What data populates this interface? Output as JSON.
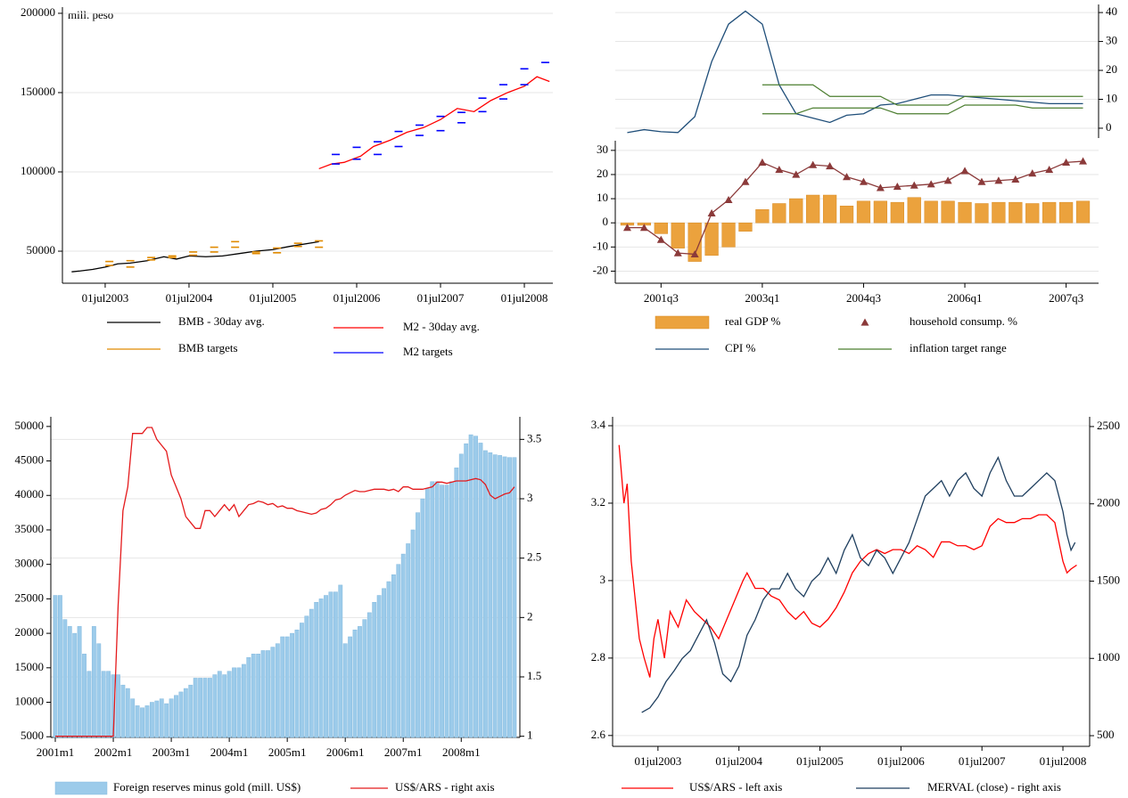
{
  "chart_data": [
    {
      "type": "line",
      "annotation": "mill. peso",
      "xlim": [
        2002.99,
        2008.84
      ],
      "xticks": [
        {
          "value": 2003.5,
          "label": "01jul2003"
        },
        {
          "value": 2004.5,
          "label": "01jul2004"
        },
        {
          "value": 2005.5,
          "label": "01jul2005"
        },
        {
          "value": 2006.5,
          "label": "01jul2006"
        },
        {
          "value": 2007.5,
          "label": "01jul2007"
        },
        {
          "value": 2008.5,
          "label": "01jul2008"
        }
      ],
      "ylim": [
        29800,
        203900
      ],
      "yticks": [
        50000,
        100000,
        150000,
        200000
      ],
      "grid": "y",
      "series": [
        {
          "name": "BMB - 30day avg.",
          "kind": "line",
          "color": "#000000",
          "x": [
            2003.1,
            2003.2,
            2003.35,
            2003.5,
            2003.65,
            2003.8,
            2004.0,
            2004.2,
            2004.35,
            2004.5,
            2004.7,
            2004.9,
            2005.1,
            2005.3,
            2005.5,
            2005.7,
            2006.05
          ],
          "values": [
            37000,
            37500,
            38500,
            40000,
            42000,
            42500,
            44000,
            46500,
            45000,
            47000,
            46500,
            47000,
            48500,
            50000,
            51000,
            53000,
            56000
          ]
        },
        {
          "name": "M2 - 30day avg.",
          "kind": "line",
          "color": "#ff0000",
          "x": [
            2006.05,
            2006.2,
            2006.35,
            2006.55,
            2006.7,
            2006.9,
            2007.1,
            2007.3,
            2007.5,
            2007.7,
            2007.9,
            2008.1,
            2008.3,
            2008.5,
            2008.65,
            2008.8
          ],
          "values": [
            102000,
            105000,
            106000,
            110000,
            116000,
            120000,
            125000,
            128000,
            133000,
            140000,
            138000,
            145000,
            150000,
            154000,
            160000,
            157000
          ]
        },
        {
          "name": "BMB targets",
          "kind": "dash",
          "color": "#e08a00",
          "x": [
            2003.55,
            2003.55,
            2003.8,
            2003.8,
            2004.05,
            2004.05,
            2004.3,
            2004.3,
            2004.55,
            2004.55,
            2004.8,
            2004.8,
            2005.05,
            2005.05,
            2005.3,
            2005.3,
            2005.55,
            2005.55,
            2005.8,
            2005.8,
            2006.05,
            2006.05
          ],
          "values": [
            43500,
            41000,
            44000,
            40000,
            46000,
            44500,
            47000,
            46000,
            49500,
            47500,
            52500,
            49500,
            56000,
            52500,
            49500,
            48500,
            52000,
            49000,
            55000,
            53000,
            56500,
            52500
          ]
        },
        {
          "name": "M2 targets",
          "kind": "dash",
          "color": "#0000ff",
          "x": [
            2006.25,
            2006.25,
            2006.5,
            2006.5,
            2006.75,
            2006.75,
            2007.0,
            2007.0,
            2007.25,
            2007.25,
            2007.5,
            2007.5,
            2007.75,
            2007.75,
            2008.0,
            2008.0,
            2008.25,
            2008.25,
            2008.5,
            2008.5,
            2008.75
          ],
          "values": [
            111000,
            105000,
            115500,
            108000,
            119000,
            111000,
            125500,
            116000,
            129500,
            123000,
            135000,
            126000,
            137500,
            131000,
            146500,
            138000,
            155000,
            146000,
            165000,
            155000,
            169000
          ]
        }
      ]
    },
    {
      "type": "combo",
      "categories": [
        null,
        null,
        "2001q3",
        null,
        null,
        null,
        null,
        null,
        "2003q1",
        null,
        null,
        null,
        null,
        null,
        "2004q3",
        null,
        null,
        null,
        null,
        null,
        "2006q1",
        null,
        null,
        null,
        null,
        null,
        "2007q3",
        null
      ],
      "ylim": [
        -25,
        34
      ],
      "yticks": [
        -20,
        -10,
        0,
        10,
        20,
        30
      ],
      "y2lim": [
        -3.4,
        42.8
      ],
      "y2ticks": [
        0,
        10,
        20,
        30,
        40
      ],
      "grid": "both",
      "series": [
        {
          "name": "real GDP %",
          "kind": "bar",
          "color": "#eba23d",
          "values": [
            -1,
            -1,
            -4.5,
            -10.5,
            -16,
            -13.5,
            -10,
            -3.5,
            5.5,
            8,
            10,
            11.5,
            11.5,
            7,
            9,
            9,
            8.5,
            10.5,
            9,
            9,
            8.5,
            8,
            8.5,
            8.5,
            8,
            8.5,
            8.5,
            9
          ]
        },
        {
          "name": "household consump. %",
          "kind": "line",
          "marker": "triangle",
          "color": "#8b3a3a",
          "values": [
            -2,
            -2,
            -7,
            -12.5,
            -13,
            4,
            9.5,
            17,
            25,
            22,
            20,
            24,
            23.5,
            19,
            17,
            14.5,
            15,
            15.5,
            16,
            17.5,
            21.5,
            17,
            17.5,
            18,
            20.5,
            22,
            25,
            25.5
          ]
        },
        {
          "name": "CPI %",
          "kind": "line",
          "axis": "y2",
          "color": "#1f4e79",
          "values": [
            -1.5,
            -0.5,
            -1.2,
            -1.5,
            4,
            23,
            36,
            40.5,
            36,
            15,
            5,
            3.5,
            2,
            4.5,
            5,
            8,
            8.5,
            10,
            11.5,
            11.5,
            11,
            10.5,
            10,
            9.5,
            9,
            8.5,
            8.5,
            8.5
          ]
        },
        {
          "name": "inflation target range",
          "kind": "range",
          "axis": "y2",
          "color": "#4b7d2f",
          "values": [
            null,
            null,
            null,
            null,
            null,
            null,
            null,
            null,
            15,
            15,
            15,
            15,
            11,
            11,
            11,
            11,
            8,
            8,
            8,
            8,
            11,
            11,
            11,
            11,
            11,
            11,
            11,
            11
          ],
          "low_values": [
            null,
            null,
            null,
            null,
            null,
            null,
            null,
            null,
            5,
            5,
            5,
            7,
            7,
            7,
            7,
            7,
            5,
            5,
            5,
            5,
            8,
            8,
            8,
            8,
            7,
            7,
            7,
            7
          ]
        }
      ]
    },
    {
      "type": "combo",
      "categories": [
        "2001m1",
        null,
        null,
        null,
        null,
        null,
        null,
        null,
        null,
        null,
        null,
        null,
        "2002m1",
        null,
        null,
        null,
        null,
        null,
        null,
        null,
        null,
        null,
        null,
        null,
        "2003m1",
        null,
        null,
        null,
        null,
        null,
        null,
        null,
        null,
        null,
        null,
        null,
        "2004m1",
        null,
        null,
        null,
        null,
        null,
        null,
        null,
        null,
        null,
        null,
        null,
        "2005m1",
        null,
        null,
        null,
        null,
        null,
        null,
        null,
        null,
        null,
        null,
        null,
        "2006m1",
        null,
        null,
        null,
        null,
        null,
        null,
        null,
        null,
        null,
        null,
        null,
        "2007m1",
        null,
        null,
        null,
        null,
        null,
        null,
        null,
        null,
        null,
        null,
        null,
        "2008m1",
        null,
        null,
        null,
        null,
        null,
        null,
        null,
        null,
        null,
        null,
        null
      ],
      "ylim": [
        4900,
        51400
      ],
      "yticks": [
        5000,
        10000,
        15000,
        20000,
        25000,
        30000,
        35000,
        40000,
        45000,
        50000
      ],
      "y2lim": [
        0.99,
        3.69
      ],
      "y2ticks": [
        1,
        1.5,
        2,
        2.5,
        3,
        3.5
      ],
      "grid": "y2",
      "series": [
        {
          "name": "Foreign reserves minus gold (mill. US$)",
          "kind": "bar",
          "color": "#9ccbea",
          "values": [
            25500,
            25500,
            22000,
            21000,
            20000,
            21000,
            17000,
            14500,
            21000,
            18500,
            14500,
            14500,
            14000,
            14000,
            12500,
            12000,
            10500,
            9500,
            9200,
            9500,
            10000,
            10200,
            10500,
            9800,
            10500,
            11000,
            11500,
            12000,
            12500,
            13500,
            13500,
            13500,
            13500,
            14000,
            14500,
            14000,
            14500,
            15000,
            15000,
            15500,
            16500,
            17000,
            17000,
            17500,
            17500,
            18000,
            18500,
            19500,
            19500,
            20000,
            20500,
            21500,
            22500,
            23500,
            24500,
            25000,
            25500,
            26000,
            26000,
            27000,
            18500,
            19500,
            20500,
            21000,
            22000,
            23000,
            24500,
            25500,
            26500,
            27500,
            28500,
            30000,
            31500,
            33000,
            35000,
            37500,
            39500,
            41000,
            42000,
            42000,
            41500,
            41500,
            42000,
            44000,
            46000,
            47500,
            48800,
            48600,
            47600,
            46500,
            46200,
            45900,
            45800,
            45600,
            45500,
            45500
          ]
        },
        {
          "name": "US$/ARS - right axis",
          "kind": "line",
          "axis": "y2",
          "color": "#e41a1c",
          "values": [
            1,
            1,
            1,
            1,
            1,
            1,
            1,
            1,
            1,
            1,
            1,
            1,
            1,
            2.1,
            2.9,
            3.1,
            3.55,
            3.55,
            3.55,
            3.6,
            3.6,
            3.5,
            3.45,
            3.4,
            3.2,
            3.1,
            3.0,
            2.85,
            2.8,
            2.75,
            2.75,
            2.9,
            2.9,
            2.85,
            2.9,
            2.95,
            2.9,
            2.95,
            2.85,
            2.9,
            2.95,
            2.96,
            2.98,
            2.97,
            2.95,
            2.96,
            2.93,
            2.94,
            2.92,
            2.92,
            2.9,
            2.89,
            2.88,
            2.87,
            2.88,
            2.91,
            2.92,
            2.95,
            2.99,
            3.0,
            3.03,
            3.05,
            3.07,
            3.06,
            3.06,
            3.07,
            3.08,
            3.08,
            3.08,
            3.07,
            3.08,
            3.06,
            3.1,
            3.1,
            3.08,
            3.08,
            3.08,
            3.09,
            3.1,
            3.14,
            3.14,
            3.13,
            3.14,
            3.15,
            3.15,
            3.15,
            3.16,
            3.17,
            3.16,
            3.12,
            3.03,
            3.0,
            3.02,
            3.04,
            3.05,
            3.1
          ]
        }
      ]
    },
    {
      "type": "line",
      "xlim": [
        2002.94,
        2008.83
      ],
      "xticks": [
        {
          "value": 2003.5,
          "label": "01jul2003"
        },
        {
          "value": 2004.5,
          "label": "01jul2004"
        },
        {
          "value": 2005.5,
          "label": "01jul2005"
        },
        {
          "value": 2006.5,
          "label": "01jul2006"
        },
        {
          "value": 2007.5,
          "label": "01jul2007"
        },
        {
          "value": 2008.5,
          "label": "01jul2008"
        }
      ],
      "ylim": [
        2.572,
        3.423
      ],
      "yticks": [
        2.6,
        2.8,
        3,
        3.2,
        3.4
      ],
      "y2lim": [
        431,
        2563
      ],
      "y2ticks": [
        500,
        1000,
        1500,
        2000,
        2500
      ],
      "grid": "y",
      "series": [
        {
          "name": "US$/ARS - left axis",
          "kind": "line",
          "color": "#ff0000",
          "x": [
            2003.02,
            2003.08,
            2003.12,
            2003.17,
            2003.22,
            2003.27,
            2003.33,
            2003.4,
            2003.45,
            2003.5,
            2003.58,
            2003.65,
            2003.75,
            2003.85,
            2003.95,
            2004.05,
            2004.15,
            2004.25,
            2004.35,
            2004.45,
            2004.55,
            2004.6,
            2004.7,
            2004.8,
            2004.9,
            2005.0,
            2005.1,
            2005.2,
            2005.3,
            2005.4,
            2005.5,
            2005.6,
            2005.7,
            2005.8,
            2005.9,
            2006.0,
            2006.1,
            2006.2,
            2006.3,
            2006.4,
            2006.5,
            2006.6,
            2006.7,
            2006.8,
            2006.9,
            2007.0,
            2007.1,
            2007.2,
            2007.3,
            2007.4,
            2007.5,
            2007.6,
            2007.7,
            2007.8,
            2007.9,
            2008.0,
            2008.1,
            2008.2,
            2008.3,
            2008.4,
            2008.5,
            2008.55,
            2008.6,
            2008.67
          ],
          "values": [
            3.35,
            3.2,
            3.25,
            3.05,
            2.95,
            2.85,
            2.8,
            2.75,
            2.85,
            2.9,
            2.8,
            2.92,
            2.88,
            2.95,
            2.92,
            2.9,
            2.88,
            2.85,
            2.9,
            2.95,
            3.0,
            3.02,
            2.98,
            2.98,
            2.96,
            2.95,
            2.92,
            2.9,
            2.92,
            2.89,
            2.88,
            2.9,
            2.93,
            2.97,
            3.02,
            3.05,
            3.07,
            3.08,
            3.07,
            3.08,
            3.08,
            3.07,
            3.09,
            3.08,
            3.06,
            3.1,
            3.1,
            3.09,
            3.09,
            3.08,
            3.09,
            3.14,
            3.16,
            3.15,
            3.15,
            3.16,
            3.16,
            3.17,
            3.17,
            3.15,
            3.05,
            3.02,
            3.03,
            3.04
          ]
        },
        {
          "name": "MERVAL (close) - right axis",
          "kind": "line",
          "axis": "y2",
          "color": "#1f3f5f",
          "x": [
            2003.3,
            2003.4,
            2003.5,
            2003.6,
            2003.7,
            2003.8,
            2003.9,
            2004.0,
            2004.1,
            2004.2,
            2004.3,
            2004.4,
            2004.5,
            2004.6,
            2004.7,
            2004.8,
            2004.9,
            2005.0,
            2005.1,
            2005.2,
            2005.3,
            2005.4,
            2005.5,
            2005.6,
            2005.7,
            2005.8,
            2005.9,
            2006.0,
            2006.1,
            2006.2,
            2006.3,
            2006.4,
            2006.5,
            2006.6,
            2006.7,
            2006.8,
            2006.9,
            2007.0,
            2007.1,
            2007.2,
            2007.3,
            2007.4,
            2007.5,
            2007.6,
            2007.7,
            2007.8,
            2007.9,
            2008.0,
            2008.1,
            2008.2,
            2008.3,
            2008.4,
            2008.5,
            2008.55,
            2008.6,
            2008.65
          ],
          "values": [
            650,
            680,
            750,
            850,
            920,
            1000,
            1050,
            1150,
            1250,
            1100,
            900,
            850,
            950,
            1150,
            1250,
            1380,
            1450,
            1450,
            1550,
            1450,
            1400,
            1500,
            1550,
            1650,
            1550,
            1700,
            1800,
            1650,
            1600,
            1700,
            1650,
            1550,
            1650,
            1750,
            1900,
            2050,
            2100,
            2150,
            2050,
            2150,
            2200,
            2100,
            2050,
            2200,
            2300,
            2150,
            2050,
            2050,
            2100,
            2150,
            2200,
            2150,
            1950,
            1800,
            1700,
            1750
          ]
        }
      ]
    }
  ]
}
